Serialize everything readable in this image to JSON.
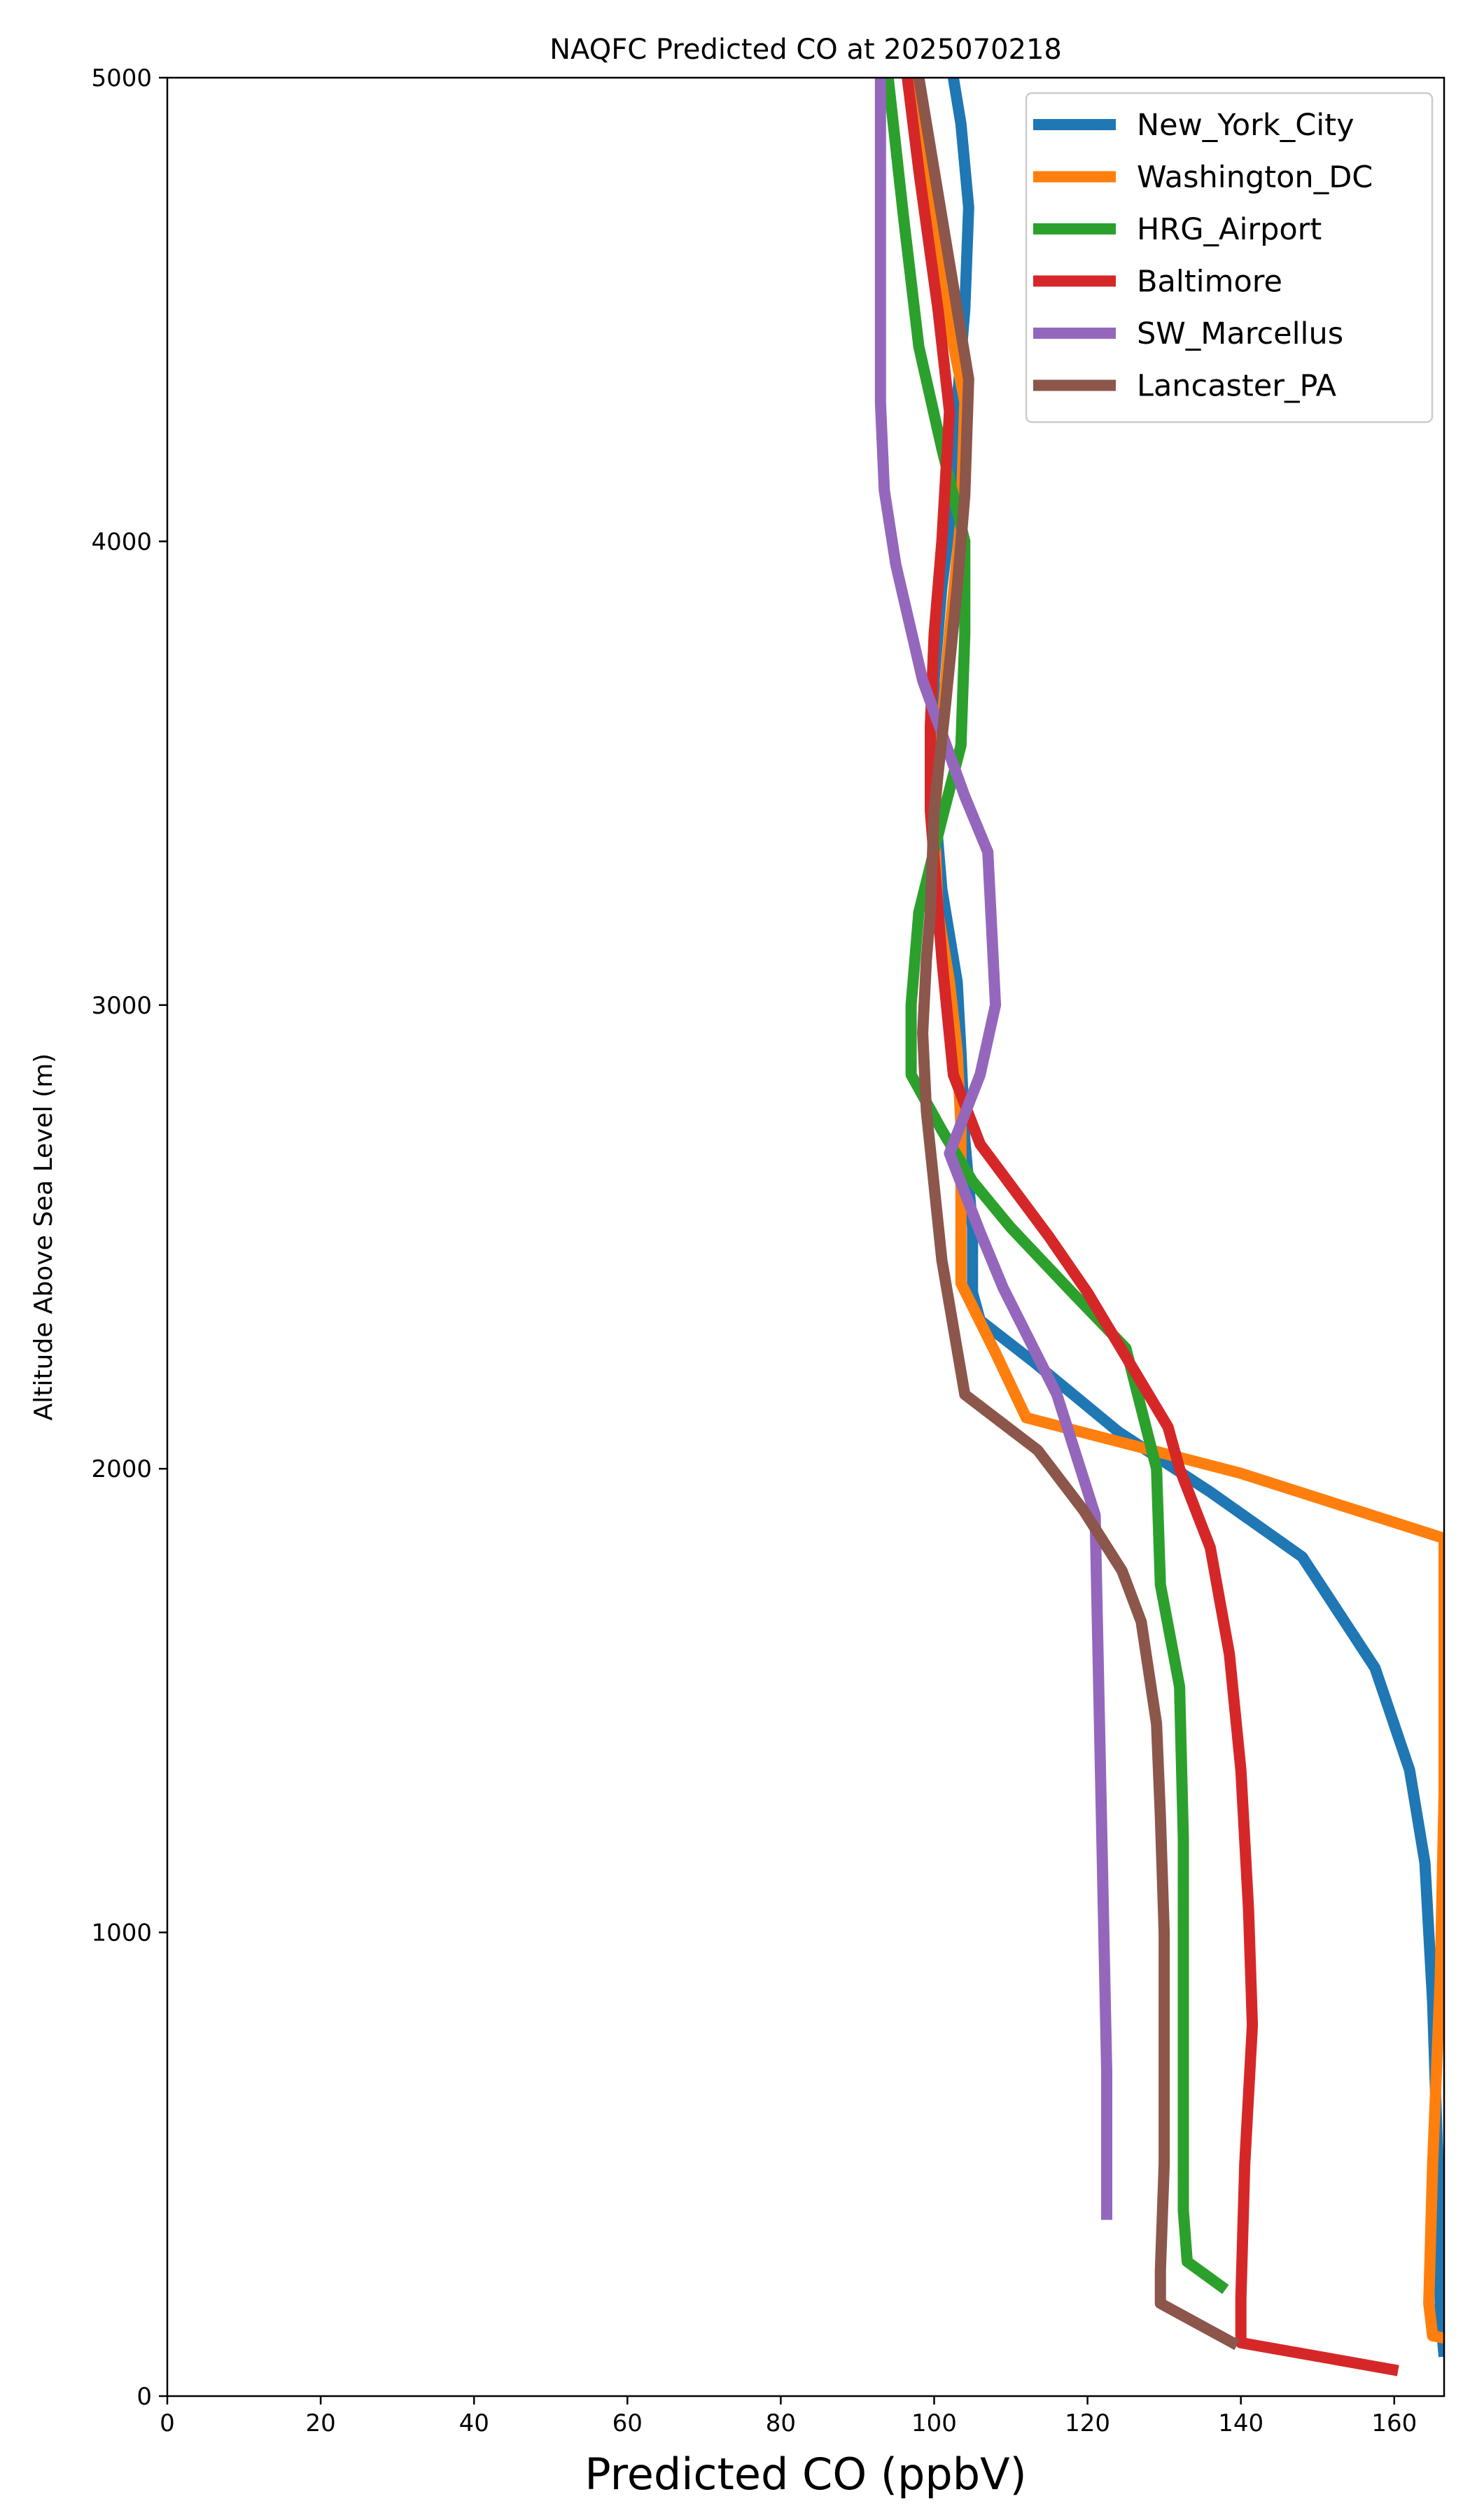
{
  "chart_data": {
    "type": "line",
    "title": "NAQFC Predicted CO at 2025070218",
    "xlabel": "Predicted CO (ppbV)",
    "ylabel": "Altitude Above Sea Level (m)",
    "xlim": [
      0,
      166.5
    ],
    "ylim": [
      0,
      5000
    ],
    "xticks": [
      0,
      20,
      40,
      60,
      80,
      100,
      120,
      140,
      160
    ],
    "yticks": [
      0,
      1000,
      2000,
      3000,
      4000,
      5000
    ],
    "grid": false,
    "legend_position": "top-right",
    "series": [
      {
        "name": "New_York_City",
        "color": "#1f77b4",
        "points": [
          [
            166.5,
            85
          ],
          [
            166,
            180
          ],
          [
            166,
            350
          ],
          [
            165.5,
            600
          ],
          [
            165,
            850
          ],
          [
            164,
            1150
          ],
          [
            162,
            1350
          ],
          [
            157.5,
            1570
          ],
          [
            148,
            1810
          ],
          [
            136,
            1950
          ],
          [
            124,
            2080
          ],
          [
            113,
            2230
          ],
          [
            106,
            2320
          ],
          [
            105,
            2380
          ],
          [
            105,
            2520
          ],
          [
            104,
            2710
          ],
          [
            103.5,
            2900
          ],
          [
            103,
            3050
          ],
          [
            101,
            3250
          ],
          [
            100,
            3450
          ],
          [
            100,
            3700
          ],
          [
            101,
            3900
          ],
          [
            102.5,
            4100
          ],
          [
            103,
            4300
          ],
          [
            104,
            4500
          ],
          [
            104.5,
            4720
          ],
          [
            103.5,
            4900
          ],
          [
            102.5,
            5000
          ]
        ]
      },
      {
        "name": "Washington_DC",
        "color": "#ff7f0e",
        "points": [
          [
            166.5,
            125
          ],
          [
            165,
            130
          ],
          [
            164.5,
            200
          ],
          [
            165,
            500
          ],
          [
            166,
            900
          ],
          [
            166.5,
            1300
          ],
          [
            166.5,
            1850
          ],
          [
            140,
            1990
          ],
          [
            112,
            2110
          ],
          [
            108,
            2250
          ],
          [
            103.5,
            2400
          ],
          [
            103.5,
            2560
          ],
          [
            103.5,
            2740
          ],
          [
            103,
            2900
          ],
          [
            102,
            3050
          ],
          [
            100.5,
            3200
          ],
          [
            100,
            3400
          ],
          [
            101,
            3600
          ],
          [
            102,
            3800
          ],
          [
            103.5,
            4050
          ],
          [
            104,
            4300
          ],
          [
            101,
            4550
          ],
          [
            99,
            4800
          ],
          [
            97,
            5000
          ]
        ]
      },
      {
        "name": "HRG_Airport",
        "color": "#2ca02c",
        "points": [
          [
            138,
            230
          ],
          [
            133,
            290
          ],
          [
            132.5,
            400
          ],
          [
            132.5,
            800
          ],
          [
            132.5,
            1200
          ],
          [
            132,
            1530
          ],
          [
            129.5,
            1750
          ],
          [
            129,
            2000
          ],
          [
            127,
            2130
          ],
          [
            125,
            2260
          ],
          [
            118,
            2380
          ],
          [
            110,
            2520
          ],
          [
            105,
            2620
          ],
          [
            101,
            2730
          ],
          [
            97,
            2850
          ],
          [
            97,
            3000
          ],
          [
            98,
            3200
          ],
          [
            101,
            3400
          ],
          [
            103.5,
            3560
          ],
          [
            104,
            3800
          ],
          [
            104,
            4000
          ],
          [
            101,
            4200
          ],
          [
            98,
            4420
          ],
          [
            96,
            4700
          ],
          [
            94,
            5000
          ]
        ]
      },
      {
        "name": "Baltimore",
        "color": "#d62728",
        "points": [
          [
            160.5,
            55
          ],
          [
            140,
            115
          ],
          [
            140,
            210
          ],
          [
            140.5,
            500
          ],
          [
            141.5,
            800
          ],
          [
            141,
            1050
          ],
          [
            140,
            1350
          ],
          [
            138.5,
            1600
          ],
          [
            136,
            1830
          ],
          [
            132,
            2000
          ],
          [
            130.5,
            2090
          ],
          [
            120,
            2380
          ],
          [
            115,
            2500
          ],
          [
            106,
            2700
          ],
          [
            102.5,
            2850
          ],
          [
            101,
            3100
          ],
          [
            99.5,
            3420
          ],
          [
            99.5,
            3600
          ],
          [
            100,
            3800
          ],
          [
            101,
            4000
          ],
          [
            102,
            4280
          ],
          [
            100.5,
            4500
          ],
          [
            98,
            4800
          ],
          [
            96.5,
            5000
          ]
        ]
      },
      {
        "name": "SW_Marcellus",
        "color": "#9467bd",
        "points": [
          [
            122.5,
            380
          ],
          [
            122.5,
            700
          ],
          [
            122,
            1100
          ],
          [
            121.5,
            1500
          ],
          [
            121,
            1900
          ],
          [
            116,
            2160
          ],
          [
            109,
            2390
          ],
          [
            106,
            2510
          ],
          [
            102,
            2680
          ],
          [
            106,
            2850
          ],
          [
            108,
            3000
          ],
          [
            107,
            3330
          ],
          [
            104,
            3450
          ],
          [
            98.5,
            3700
          ],
          [
            95,
            3950
          ],
          [
            93.5,
            4110
          ],
          [
            93,
            4300
          ],
          [
            93,
            4550
          ],
          [
            93,
            4800
          ],
          [
            93,
            5000
          ]
        ]
      },
      {
        "name": "Lancaster_PA",
        "color": "#8c564b",
        "points": [
          [
            139.5,
            110
          ],
          [
            129.5,
            200
          ],
          [
            129.5,
            270
          ],
          [
            130,
            500
          ],
          [
            130,
            800
          ],
          [
            130,
            1000
          ],
          [
            129.5,
            1250
          ],
          [
            129,
            1450
          ],
          [
            127,
            1670
          ],
          [
            124.5,
            1780
          ],
          [
            119.5,
            1910
          ],
          [
            113.5,
            2040
          ],
          [
            104,
            2160
          ],
          [
            101,
            2450
          ],
          [
            99,
            2770
          ],
          [
            98.5,
            2940
          ],
          [
            99,
            3100
          ],
          [
            99.5,
            3200
          ],
          [
            100,
            3420
          ],
          [
            101.5,
            3650
          ],
          [
            103,
            3900
          ],
          [
            104,
            4100
          ],
          [
            104.5,
            4350
          ],
          [
            100,
            4800
          ],
          [
            98,
            5000
          ]
        ]
      }
    ]
  }
}
